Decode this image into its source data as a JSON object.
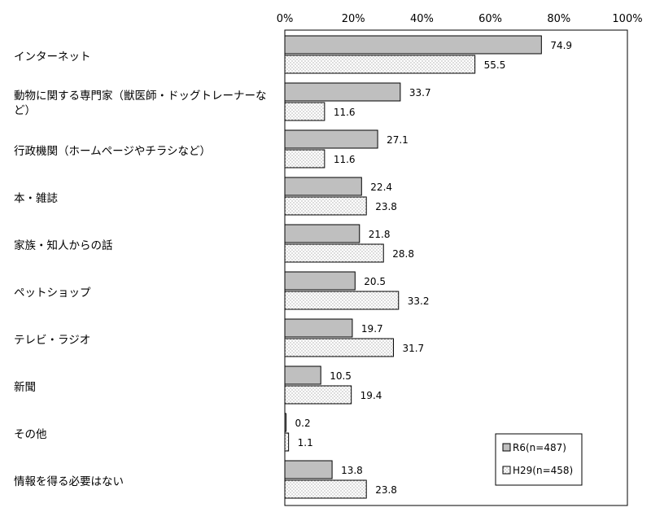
{
  "chart_data": {
    "type": "bar",
    "orientation": "horizontal",
    "xlim": [
      0,
      100
    ],
    "x_ticks": [
      "0%",
      "20%",
      "40%",
      "60%",
      "80%",
      "100%"
    ],
    "categories": [
      [
        "インターネット"
      ],
      [
        "動物に関する専門家（獣医師・ドッグトレーナーな",
        "ど）"
      ],
      [
        "行政機関（ホームページやチラシなど）"
      ],
      [
        "本・雑誌"
      ],
      [
        "家族・知人からの話"
      ],
      [
        "ペットショップ"
      ],
      [
        "テレビ・ラジオ"
      ],
      [
        "新聞"
      ],
      [
        "その他"
      ],
      [
        "情報を得る必要はない"
      ]
    ],
    "series": [
      {
        "name": "R6(n=487)",
        "values": [
          74.9,
          33.7,
          27.1,
          22.4,
          21.8,
          20.5,
          19.7,
          10.5,
          0.2,
          13.8
        ],
        "fill": "#bfbfbf",
        "pattern": "solid"
      },
      {
        "name": "H29(n=458)",
        "values": [
          55.5,
          11.6,
          11.6,
          23.8,
          28.8,
          33.2,
          31.7,
          19.4,
          1.1,
          23.8
        ],
        "fill": "#ffffff",
        "pattern": "dots"
      }
    ],
    "value_labels": [
      [
        "74.9",
        "33.7",
        "27.1",
        "22.4",
        "21.8",
        "20.5",
        "19.7",
        "10.5",
        "0.2",
        "13.8"
      ],
      [
        "55.5",
        "11.6",
        "11.6",
        "23.8",
        "28.8",
        "33.2",
        "31.7",
        "19.4",
        "1.1",
        "23.8"
      ]
    ],
    "legend": {
      "position": "bottom-right",
      "labels": [
        "R6(n=487)",
        "H29(n=458)"
      ]
    },
    "grid": false
  }
}
